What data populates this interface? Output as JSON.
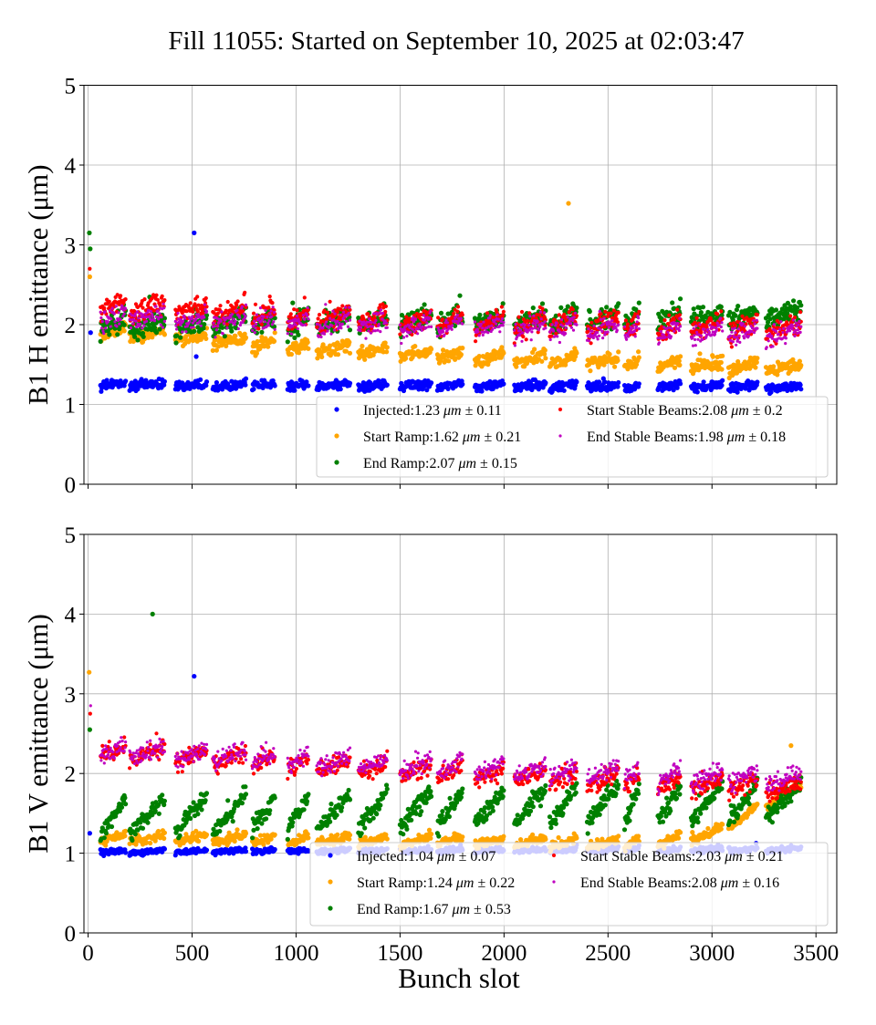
{
  "chart_data": [
    {
      "type": "scatter",
      "title": "Fill 11055: Started on September 10, 2025 at 02:03:47",
      "xlabel": "",
      "ylabel": "B1 H emittance (μm)",
      "xlim": [
        -20,
        3600
      ],
      "ylim": [
        0,
        5
      ],
      "xticks": [
        0,
        500,
        1000,
        1500,
        2000,
        2500,
        3000,
        3500
      ],
      "yticks": [
        0,
        1,
        2,
        3,
        4,
        5
      ],
      "grid": true,
      "legend_placement": "lower-right",
      "trains": [
        [
          60,
          180
        ],
        [
          200,
          370
        ],
        [
          420,
          570
        ],
        [
          600,
          760
        ],
        [
          790,
          900
        ],
        [
          960,
          1060
        ],
        [
          1100,
          1260
        ],
        [
          1300,
          1440
        ],
        [
          1500,
          1650
        ],
        [
          1680,
          1800
        ],
        [
          1860,
          2000
        ],
        [
          2050,
          2200
        ],
        [
          2220,
          2350
        ],
        [
          2400,
          2550
        ],
        [
          2580,
          2650
        ],
        [
          2740,
          2850
        ],
        [
          2900,
          3050
        ],
        [
          3080,
          3220
        ],
        [
          3260,
          3430
        ]
      ],
      "series": [
        {
          "name": "Injected",
          "mean": "1.23",
          "std": "0.11",
          "color": "#0000ff",
          "r": 2.6,
          "anchors": [
            [
              0,
              1.25
            ],
            [
              3500,
              1.22
            ]
          ],
          "spread": 0.05,
          "train_slope": 0.04,
          "outliers": [
            [
              510,
              3.15
            ],
            [
              12,
              1.9
            ],
            [
              520,
              1.6
            ]
          ]
        },
        {
          "name": "Start Ramp",
          "mean": "1.62",
          "std": "0.21",
          "color": "#ffa500",
          "r": 2.6,
          "anchors": [
            [
              0,
              1.95
            ],
            [
              1000,
              1.72
            ],
            [
              2000,
              1.58
            ],
            [
              3500,
              1.45
            ]
          ],
          "spread": 0.07,
          "train_slope": 0.12,
          "outliers": [
            [
              2310,
              3.52
            ],
            [
              8,
              2.6
            ]
          ]
        },
        {
          "name": "End Ramp",
          "mean": "2.07",
          "std": "0.15",
          "color": "#008000",
          "r": 2.6,
          "anchors": [
            [
              0,
              2.0
            ],
            [
              1500,
              2.05
            ],
            [
              3500,
              2.12
            ]
          ],
          "spread": 0.12,
          "train_slope": 0.15,
          "outliers": [
            [
              6,
              3.15
            ],
            [
              10,
              2.95
            ]
          ]
        },
        {
          "name": "Start Stable Beams",
          "mean": "2.08",
          "std": "0.2",
          "color": "#ff0000",
          "r": 2.1,
          "anchors": [
            [
              0,
              2.25
            ],
            [
              1500,
              2.05
            ],
            [
              3500,
              1.95
            ]
          ],
          "spread": 0.12,
          "train_slope": 0.2,
          "outliers": [
            [
              8,
              2.7
            ]
          ]
        },
        {
          "name": "End Stable Beams",
          "mean": "1.98",
          "std": "0.18",
          "color": "#c000c0",
          "r": 1.6,
          "anchors": [
            [
              0,
              2.1
            ],
            [
              1500,
              2.0
            ],
            [
              3500,
              1.88
            ]
          ],
          "spread": 0.11,
          "train_slope": 0.15,
          "outliers": []
        }
      ],
      "unit": "μm",
      "pm": "±"
    },
    {
      "type": "scatter",
      "xlabel": "Bunch slot",
      "ylabel": "B1 V emittance (μm)",
      "xlim": [
        -20,
        3600
      ],
      "ylim": [
        0,
        5
      ],
      "xticks": [
        0,
        500,
        1000,
        1500,
        2000,
        2500,
        3000,
        3500
      ],
      "yticks": [
        0,
        1,
        2,
        3,
        4,
        5
      ],
      "grid": true,
      "legend_placement": "lower-right",
      "trains": [
        [
          60,
          180
        ],
        [
          200,
          370
        ],
        [
          420,
          570
        ],
        [
          600,
          760
        ],
        [
          790,
          900
        ],
        [
          960,
          1060
        ],
        [
          1100,
          1260
        ],
        [
          1300,
          1440
        ],
        [
          1500,
          1650
        ],
        [
          1680,
          1800
        ],
        [
          1860,
          2000
        ],
        [
          2050,
          2200
        ],
        [
          2220,
          2350
        ],
        [
          2400,
          2550
        ],
        [
          2580,
          2650
        ],
        [
          2740,
          2850
        ],
        [
          2900,
          3050
        ],
        [
          3080,
          3220
        ],
        [
          3260,
          3430
        ]
      ],
      "series": [
        {
          "name": "Injected",
          "mean": "1.04",
          "std": "0.07",
          "color": "#0000ff",
          "r": 2.6,
          "anchors": [
            [
              0,
              1.02
            ],
            [
              3500,
              1.05
            ]
          ],
          "spread": 0.03,
          "train_slope": 0.03,
          "outliers": [
            [
              510,
              3.22
            ],
            [
              8,
              1.25
            ]
          ]
        },
        {
          "name": "Start Ramp",
          "mean": "1.24",
          "std": "0.22",
          "color": "#ffa500",
          "r": 2.6,
          "anchors": [
            [
              0,
              1.2
            ],
            [
              2700,
              1.12
            ],
            [
              3000,
              1.25
            ],
            [
              3400,
              1.8
            ]
          ],
          "spread": 0.05,
          "train_slope": 0.1,
          "outliers": [
            [
              5,
              3.27
            ],
            [
              3380,
              2.35
            ]
          ]
        },
        {
          "name": "End Ramp",
          "mean": "1.67",
          "std": "0.53",
          "color": "#008000",
          "r": 2.6,
          "anchors": [
            [
              0,
              1.45
            ],
            [
              1500,
              1.55
            ],
            [
              3500,
              1.68
            ]
          ],
          "spread": 0.1,
          "train_slope": 0.45,
          "outliers": [
            [
              310,
              4.0
            ],
            [
              8,
              2.55
            ]
          ]
        },
        {
          "name": "Start Stable Beams",
          "mean": "2.03",
          "std": "0.21",
          "color": "#ff0000",
          "r": 2.1,
          "anchors": [
            [
              0,
              2.3
            ],
            [
              1500,
              2.05
            ],
            [
              3500,
              1.8
            ]
          ],
          "spread": 0.1,
          "train_slope": 0.18,
          "outliers": [
            [
              10,
              2.75
            ]
          ]
        },
        {
          "name": "End Stable Beams",
          "mean": "2.08",
          "std": "0.16",
          "color": "#c000c0",
          "r": 1.6,
          "anchors": [
            [
              0,
              2.3
            ],
            [
              1500,
              2.1
            ],
            [
              3500,
              1.9
            ]
          ],
          "spread": 0.1,
          "train_slope": 0.18,
          "outliers": [
            [
              12,
              2.85
            ]
          ]
        }
      ],
      "unit": "μm",
      "pm": "±"
    }
  ]
}
